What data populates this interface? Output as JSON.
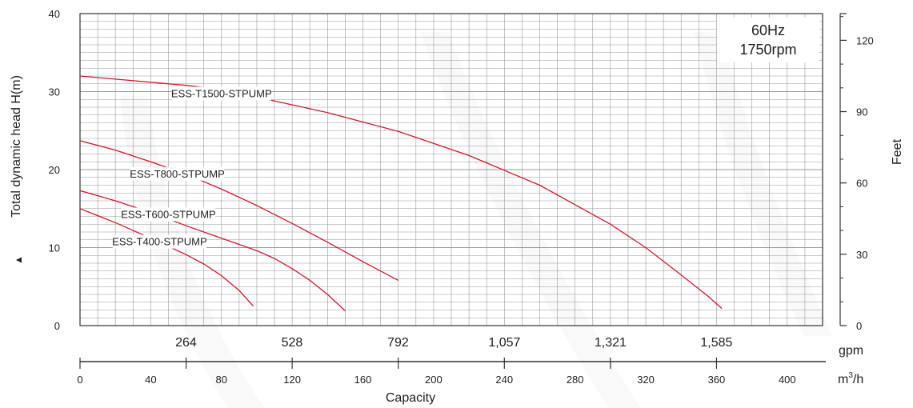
{
  "chart_data": {
    "type": "line",
    "info_box": [
      "60Hz",
      "1750rpm"
    ],
    "ylabel_left": "Total dynamic head H(m)",
    "ylabel_right": "Feet",
    "xlabel": "Capacity",
    "ylim_m": [
      0,
      40
    ],
    "xlim_m3h": [
      0,
      420
    ],
    "yticks_m": [
      "0",
      "10",
      "20",
      "30",
      "40"
    ],
    "yticks_ft": [
      "0",
      "30",
      "60",
      "90",
      "120"
    ],
    "xticks_m3h": [
      "0",
      "40",
      "80",
      "120",
      "160",
      "200",
      "240",
      "280",
      "320",
      "360",
      "400"
    ],
    "xticks_gpm": [
      "264",
      "528",
      "792",
      "1,057",
      "1,321",
      "1,585"
    ],
    "unit_gpm": "gpm",
    "unit_m3h_base": "m",
    "unit_m3h_sup": "3",
    "unit_m3h_tail": "/h",
    "grid": true,
    "line_color": "#d7182a",
    "series": [
      {
        "name": "ESS-T1500-STPUMP",
        "x": [
          0,
          60,
          80,
          100,
          140,
          180,
          220,
          260,
          300,
          320,
          340,
          355,
          363
        ],
        "y": [
          32,
          30.8,
          30.3,
          29.3,
          27.3,
          24.9,
          21.8,
          18.0,
          13.0,
          10.0,
          6.5,
          3.8,
          2.2
        ]
      },
      {
        "name": "ESS-T800-STPUMP",
        "x": [
          0,
          20,
          40,
          60,
          80,
          100,
          120,
          140,
          160,
          180
        ],
        "y": [
          23.7,
          22.5,
          21.0,
          19.4,
          17.5,
          15.4,
          13.1,
          10.7,
          8.2,
          5.8
        ]
      },
      {
        "name": "ESS-T600-STPUMP",
        "x": [
          0,
          20,
          40,
          60,
          80,
          100,
          110,
          120,
          130,
          140,
          150
        ],
        "y": [
          17.3,
          16.0,
          14.5,
          12.8,
          11.2,
          9.6,
          8.6,
          7.3,
          5.8,
          4.0,
          1.9
        ]
      },
      {
        "name": "ESS-T400-STPUMP",
        "x": [
          0,
          20,
          40,
          60,
          70,
          80,
          90,
          98
        ],
        "y": [
          15.0,
          13.2,
          11.2,
          9.1,
          7.9,
          6.4,
          4.5,
          2.5
        ]
      }
    ]
  }
}
